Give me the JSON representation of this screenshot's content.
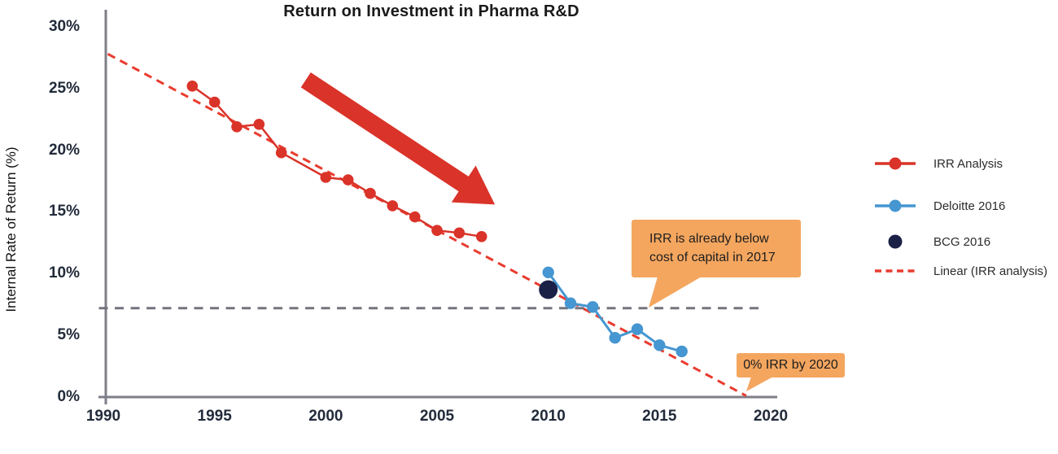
{
  "chart_data": {
    "type": "line",
    "title": "Return on Investment in Pharma R&D",
    "xlabel": "",
    "ylabel": "Internal Rate of Return (%)",
    "xlim": [
      1990,
      2020
    ],
    "ylim": [
      0,
      30
    ],
    "grid": false,
    "legend_position": "right",
    "xticks": [
      {
        "value": 1990,
        "label": "1990"
      },
      {
        "value": 1995,
        "label": "1995"
      },
      {
        "value": 2000,
        "label": "2000"
      },
      {
        "value": 2005,
        "label": "2005"
      },
      {
        "value": 2010,
        "label": "2010"
      },
      {
        "value": 2015,
        "label": "2015"
      },
      {
        "value": 2020,
        "label": "2020"
      }
    ],
    "yticks": [
      {
        "value": 0,
        "label": "0%"
      },
      {
        "value": 5,
        "label": "5%"
      },
      {
        "value": 10,
        "label": "10%"
      },
      {
        "value": 15,
        "label": "15%"
      },
      {
        "value": 20,
        "label": "20%"
      },
      {
        "value": 25,
        "label": "25%"
      },
      {
        "value": 30,
        "label": "30%"
      }
    ],
    "series": [
      {
        "name": "IRR Analysis",
        "style": "line-markers",
        "color": "#da3329",
        "points": [
          [
            1994,
            25.2
          ],
          [
            1995,
            23.9
          ],
          [
            1996,
            21.9
          ],
          [
            1997,
            22.1
          ],
          [
            1998,
            19.8
          ],
          [
            2000,
            17.8
          ],
          [
            2001,
            17.6
          ],
          [
            2002,
            16.5
          ],
          [
            2003,
            15.5
          ],
          [
            2004,
            14.6
          ],
          [
            2005,
            13.5
          ],
          [
            2006,
            13.3
          ],
          [
            2007,
            13.0
          ]
        ]
      },
      {
        "name": "Deloitte 2016",
        "style": "line-markers",
        "color": "#4596d1",
        "points": [
          [
            2010,
            10.1
          ],
          [
            2011,
            7.6
          ],
          [
            2012,
            7.3
          ],
          [
            2013,
            4.8
          ],
          [
            2014,
            5.5
          ],
          [
            2015,
            4.2
          ],
          [
            2016,
            3.7
          ]
        ]
      },
      {
        "name": "BCG 2016",
        "style": "marker-only",
        "color": "#1b2046",
        "points": [
          [
            2010,
            8.7
          ]
        ]
      },
      {
        "name": "Linear (IRR analysis)",
        "style": "dashed-trendline",
        "color": "#e93b2e",
        "points": [
          [
            1990.2,
            27.8
          ],
          [
            2018.9,
            0.1
          ]
        ]
      }
    ],
    "reference_line": {
      "value": 7.2,
      "meaning": "cost of capital",
      "style": "dashed",
      "color": "#75747e",
      "x_start": 1989.8,
      "x_end": 2019.5
    },
    "annotations": [
      {
        "id": "cost-of-capital-callout",
        "lines": [
          "IRR is already below",
          "cost of capital in 2017"
        ],
        "bg_color": "#f4a65f"
      },
      {
        "id": "zero-irr-callout",
        "lines": [
          "0% IRR by 2020"
        ],
        "bg_color": "#f4a65f"
      },
      {
        "id": "decline-arrow",
        "type": "arrow",
        "from": [
          1999.1,
          25.7
        ],
        "to": [
          2007.6,
          15.6
        ],
        "color": "#da3329"
      }
    ],
    "axis_color": "#7e7e87",
    "tick_label_color": "#222b3a"
  }
}
